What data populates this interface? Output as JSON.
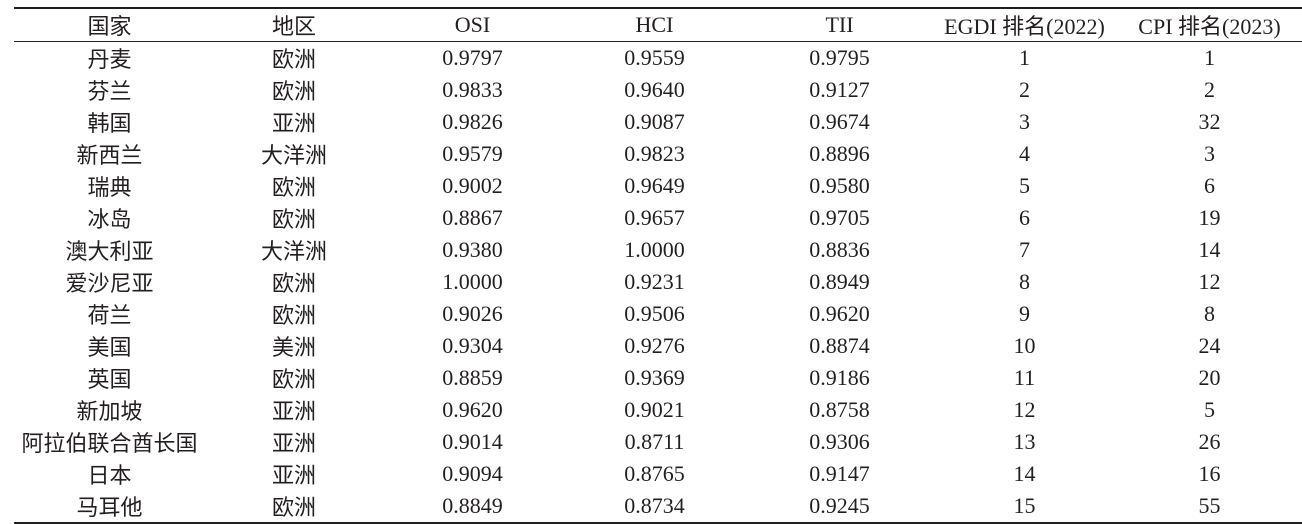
{
  "table": {
    "headers": [
      "国家",
      "地区",
      "OSI",
      "HCI",
      "TII",
      "EGDI 排名(2022)",
      "CPI 排名(2023)"
    ],
    "rows": [
      [
        "丹麦",
        "欧洲",
        "0.9797",
        "0.9559",
        "0.9795",
        "1",
        "1"
      ],
      [
        "芬兰",
        "欧洲",
        "0.9833",
        "0.9640",
        "0.9127",
        "2",
        "2"
      ],
      [
        "韩国",
        "亚洲",
        "0.9826",
        "0.9087",
        "0.9674",
        "3",
        "32"
      ],
      [
        "新西兰",
        "大洋洲",
        "0.9579",
        "0.9823",
        "0.8896",
        "4",
        "3"
      ],
      [
        "瑞典",
        "欧洲",
        "0.9002",
        "0.9649",
        "0.9580",
        "5",
        "6"
      ],
      [
        "冰岛",
        "欧洲",
        "0.8867",
        "0.9657",
        "0.9705",
        "6",
        "19"
      ],
      [
        "澳大利亚",
        "大洋洲",
        "0.9380",
        "1.0000",
        "0.8836",
        "7",
        "14"
      ],
      [
        "爱沙尼亚",
        "欧洲",
        "1.0000",
        "0.9231",
        "0.8949",
        "8",
        "12"
      ],
      [
        "荷兰",
        "欧洲",
        "0.9026",
        "0.9506",
        "0.9620",
        "9",
        "8"
      ],
      [
        "美国",
        "美洲",
        "0.9304",
        "0.9276",
        "0.8874",
        "10",
        "24"
      ],
      [
        "英国",
        "欧洲",
        "0.8859",
        "0.9369",
        "0.9186",
        "11",
        "20"
      ],
      [
        "新加坡",
        "亚洲",
        "0.9620",
        "0.9021",
        "0.8758",
        "12",
        "5"
      ],
      [
        "阿拉伯联合酋长国",
        "亚洲",
        "0.9014",
        "0.8711",
        "0.9306",
        "13",
        "26"
      ],
      [
        "日本",
        "亚洲",
        "0.9094",
        "0.8765",
        "0.9147",
        "14",
        "16"
      ],
      [
        "马耳他",
        "欧洲",
        "0.8849",
        "0.8734",
        "0.9245",
        "15",
        "55"
      ]
    ]
  }
}
